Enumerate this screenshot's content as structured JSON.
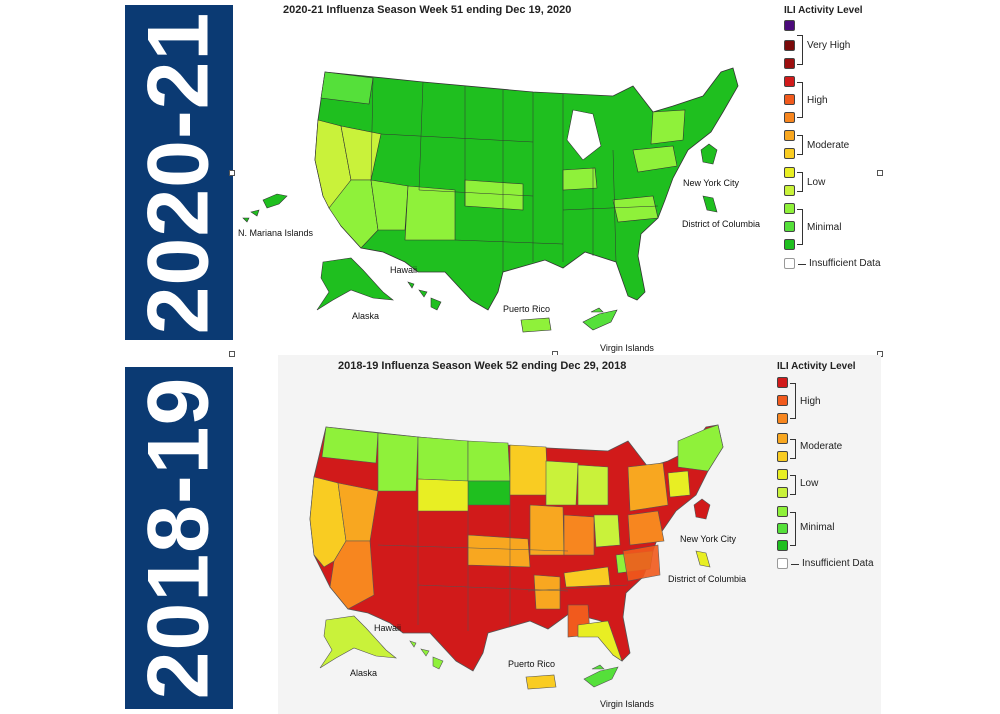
{
  "bands": [
    {
      "label": "2020-21",
      "color": "#0b3a73"
    },
    {
      "label": "2018-19",
      "color": "#0b3a73"
    }
  ],
  "legend_colors": {
    "purple": "#4b0a7a",
    "vh1": "#7a0a0a",
    "vh2": "#9c0f0f",
    "high1": "#d11a1a",
    "high2": "#f15a1d",
    "high3": "#f7861f",
    "mod1": "#f8a720",
    "mod2": "#f9cc22",
    "low1": "#e8ee23",
    "low2": "#c9f23a",
    "min1": "#8ff13a",
    "min2": "#55e03a",
    "min3": "#1fbf1f",
    "insufficient": "#ffffff"
  },
  "panels": [
    {
      "title": "2020-21 Influenza Season Week 51 ending Dec 19, 2020",
      "legend_title": "ILI Activity Level",
      "legend_labels": {
        "very_high": "Very High",
        "high": "High",
        "moderate": "Moderate",
        "low": "Low",
        "minimal": "Minimal",
        "insufficient": "Insufficient Data"
      },
      "labels": {
        "nyc": "New York City",
        "dc": "District of Columbia",
        "nmi": "N. Mariana Islands",
        "hawaii": "Hawaii",
        "alaska": "Alaska",
        "pr": "Puerto Rico",
        "vi": "Virgin Islands"
      }
    },
    {
      "title": "2018-19 Influenza Season Week 52 ending Dec 29, 2018",
      "legend_title": "ILI Activity Level",
      "legend_labels": {
        "high": "High",
        "moderate": "Moderate",
        "low": "Low",
        "minimal": "Minimal",
        "insufficient": "Insufficient Data"
      },
      "labels": {
        "nyc": "New York City",
        "dc": "District of Columbia",
        "hawaii": "Hawaii",
        "alaska": "Alaska",
        "pr": "Puerto Rico",
        "vi": "Virgin Islands"
      }
    }
  ]
}
